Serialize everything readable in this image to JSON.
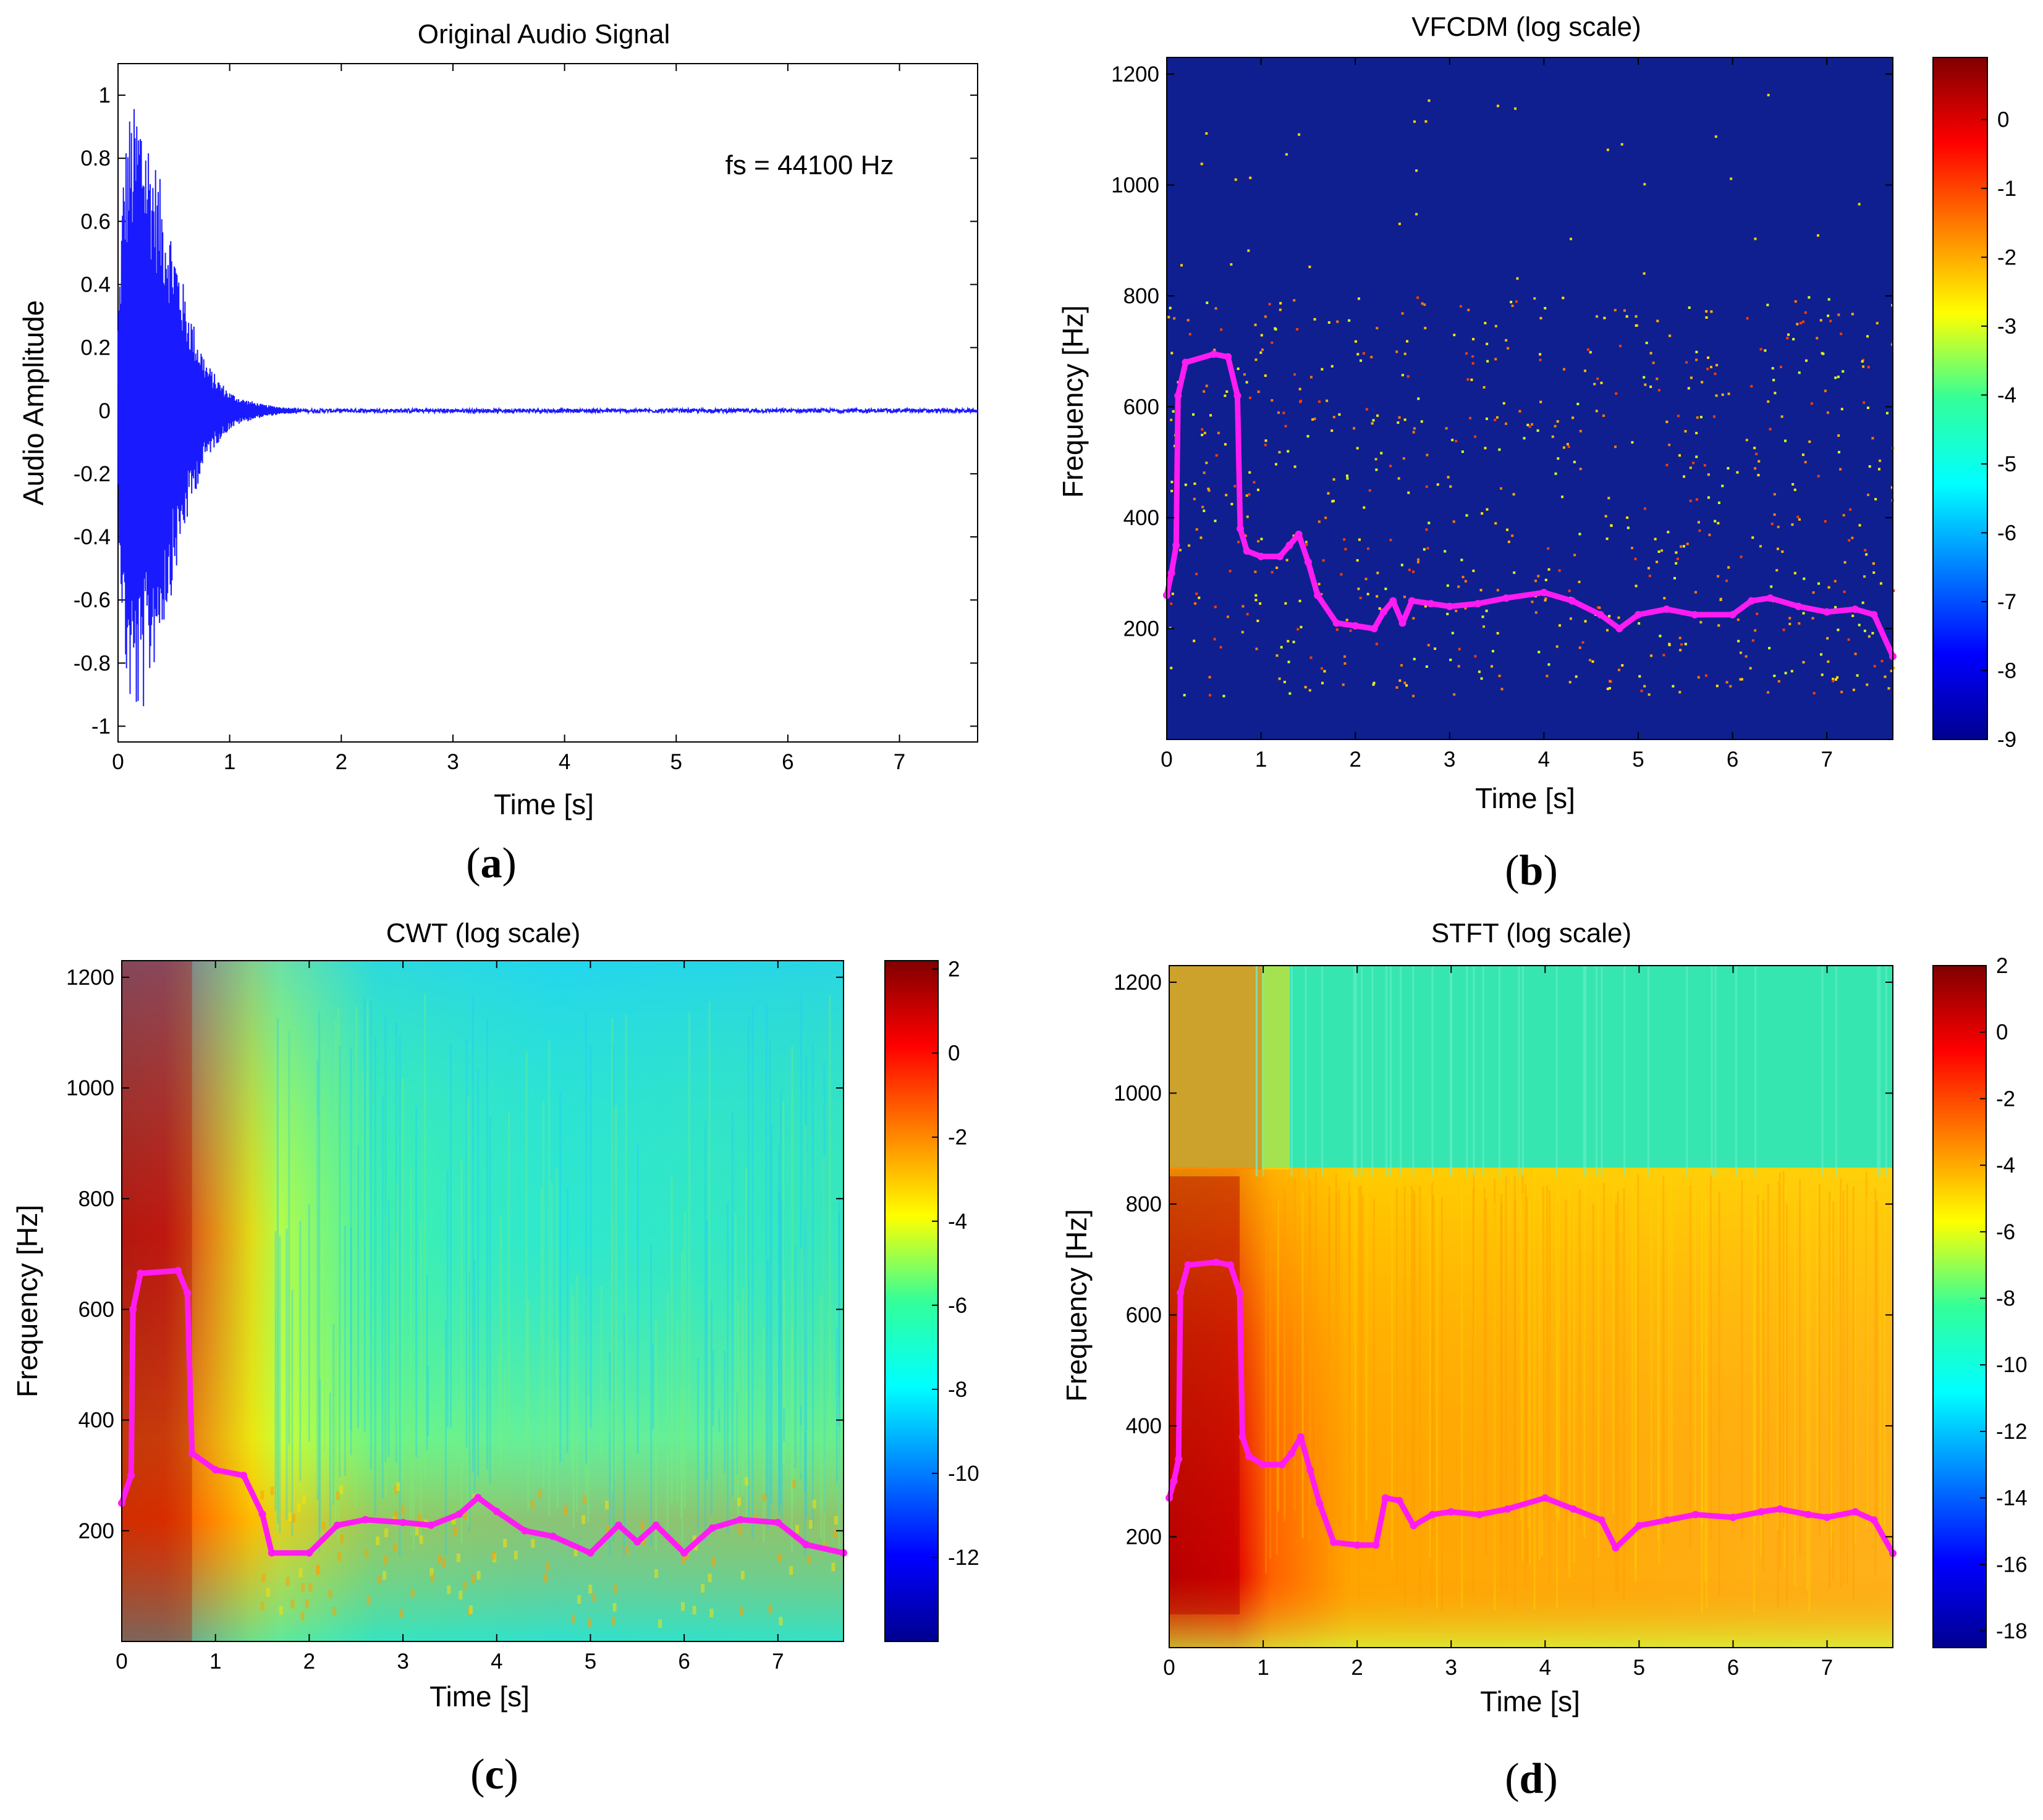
{
  "colors": {
    "signal": "#1a1aff",
    "trace": "#ff1cf2",
    "bg_dark_blue": "#0f1f8f"
  },
  "chart_data": [
    {
      "id": "a",
      "type": "line",
      "panel_label": "a",
      "title": "Original Audio Signal",
      "xlabel": "Time [s]",
      "ylabel": "Audio Amplitude",
      "annotation": "fs = 44100 Hz",
      "xlim": [
        0,
        7.7
      ],
      "ylim": [
        -1.05,
        1.1
      ],
      "xticks": [
        "0",
        "1",
        "2",
        "3",
        "4",
        "5",
        "6",
        "7"
      ],
      "yticks": [
        "-1",
        "-0.8",
        "-0.6",
        "-0.4",
        "-0.2",
        "0",
        "0.2",
        "0.4",
        "0.6",
        "0.8",
        "1"
      ],
      "series": [
        {
          "name": "envelope",
          "t": [
            0,
            0.05,
            0.1,
            0.15,
            0.2,
            0.25,
            0.3,
            0.4,
            0.5,
            0.6,
            0.7,
            0.8,
            0.9,
            1.0,
            1.1,
            1.2,
            1.3,
            1.4,
            1.5
          ],
          "amp": [
            0.3,
            0.8,
            0.95,
            0.97,
            1.0,
            0.93,
            0.85,
            0.7,
            0.55,
            0.38,
            0.25,
            0.15,
            0.1,
            0.06,
            0.04,
            0.03,
            0.02,
            0.015,
            0.01
          ]
        }
      ]
    },
    {
      "id": "b",
      "type": "heatmap",
      "panel_label": "b",
      "title": "VFCDM (log scale)",
      "xlabel": "Time [s]",
      "ylabel": "Frequency [Hz]",
      "xlim": [
        0,
        7.7
      ],
      "ylim": [
        0,
        1230
      ],
      "xticks": [
        "0",
        "1",
        "2",
        "3",
        "4",
        "5",
        "6",
        "7"
      ],
      "yticks": [
        "200",
        "400",
        "600",
        "800",
        "1000",
        "1200"
      ],
      "colorbar": {
        "min": -9,
        "max": 0.9,
        "ticks": [
          "0",
          "-1",
          "-2",
          "-3",
          "-4",
          "-5",
          "-6",
          "-7",
          "-8",
          "-9"
        ]
      },
      "trace": {
        "t": [
          0,
          0.05,
          0.1,
          0.12,
          0.2,
          0.5,
          0.65,
          0.75,
          0.78,
          0.85,
          1.0,
          1.2,
          1.3,
          1.4,
          1.5,
          1.6,
          1.8,
          2.0,
          2.2,
          2.3,
          2.4,
          2.5,
          2.6,
          2.8,
          3.0,
          3.3,
          3.6,
          4.0,
          4.3,
          4.6,
          4.8,
          5.0,
          5.3,
          5.6,
          6.0,
          6.2,
          6.4,
          6.7,
          7.0,
          7.3,
          7.5,
          7.7
        ],
        "f": [
          260,
          300,
          350,
          620,
          680,
          695,
          690,
          620,
          380,
          340,
          330,
          330,
          350,
          370,
          320,
          260,
          210,
          205,
          200,
          230,
          250,
          210,
          250,
          245,
          240,
          245,
          255,
          265,
          250,
          225,
          200,
          225,
          235,
          225,
          225,
          250,
          255,
          240,
          230,
          235,
          225,
          150
        ]
      }
    },
    {
      "id": "c",
      "type": "heatmap",
      "panel_label": "c",
      "title": "CWT (log scale)",
      "xlabel": "Time [s]",
      "ylabel": "Frequency [Hz]",
      "xlim": [
        0,
        7.7
      ],
      "ylim": [
        0,
        1230
      ],
      "xticks": [
        "0",
        "1",
        "2",
        "3",
        "4",
        "5",
        "6",
        "7"
      ],
      "yticks": [
        "200",
        "400",
        "600",
        "800",
        "1000",
        "1200"
      ],
      "colorbar": {
        "min": -14,
        "max": 2.2,
        "ticks": [
          "2",
          "0",
          "-2",
          "-4",
          "-6",
          "-8",
          "-10",
          "-12"
        ]
      },
      "trace": {
        "t": [
          0,
          0.1,
          0.12,
          0.2,
          0.6,
          0.7,
          0.75,
          1.0,
          1.3,
          1.5,
          1.6,
          2.0,
          2.3,
          2.6,
          3.0,
          3.3,
          3.6,
          3.8,
          4.0,
          4.3,
          4.6,
          5.0,
          5.3,
          5.5,
          5.7,
          6.0,
          6.3,
          6.6,
          7.0,
          7.3,
          7.7
        ],
        "f": [
          250,
          300,
          600,
          665,
          670,
          630,
          340,
          310,
          300,
          230,
          160,
          160,
          210,
          220,
          215,
          210,
          230,
          260,
          235,
          200,
          190,
          160,
          210,
          180,
          210,
          160,
          205,
          220,
          215,
          175,
          160
        ]
      }
    },
    {
      "id": "d",
      "type": "heatmap",
      "panel_label": "d",
      "title": "STFT (log scale)",
      "xlabel": "Time [s]",
      "ylabel": "Frequency [Hz]",
      "xlim": [
        0,
        7.7
      ],
      "ylim": [
        0,
        1230
      ],
      "xticks": [
        "0",
        "1",
        "2",
        "3",
        "4",
        "5",
        "6",
        "7"
      ],
      "yticks": [
        "200",
        "400",
        "600",
        "800",
        "1000",
        "1200"
      ],
      "colorbar": {
        "min": -18.5,
        "max": 2,
        "ticks": [
          "2",
          "0",
          "-2",
          "-4",
          "-6",
          "-8",
          "-10",
          "-12",
          "-14",
          "-16",
          "-18"
        ]
      },
      "trace": {
        "t": [
          0,
          0.05,
          0.1,
          0.12,
          0.2,
          0.5,
          0.65,
          0.75,
          0.78,
          0.85,
          1.0,
          1.2,
          1.3,
          1.4,
          1.5,
          1.6,
          1.75,
          2.0,
          2.2,
          2.3,
          2.45,
          2.6,
          2.8,
          3.0,
          3.3,
          3.6,
          4.0,
          4.3,
          4.6,
          4.75,
          5.0,
          5.3,
          5.6,
          6.0,
          6.3,
          6.5,
          6.8,
          7.0,
          7.3,
          7.5,
          7.7
        ],
        "f": [
          270,
          300,
          340,
          640,
          690,
          695,
          690,
          640,
          380,
          345,
          330,
          330,
          350,
          380,
          320,
          260,
          190,
          185,
          185,
          270,
          265,
          220,
          240,
          245,
          240,
          250,
          270,
          250,
          230,
          180,
          220,
          230,
          240,
          235,
          245,
          250,
          240,
          235,
          245,
          230,
          170
        ]
      }
    }
  ]
}
